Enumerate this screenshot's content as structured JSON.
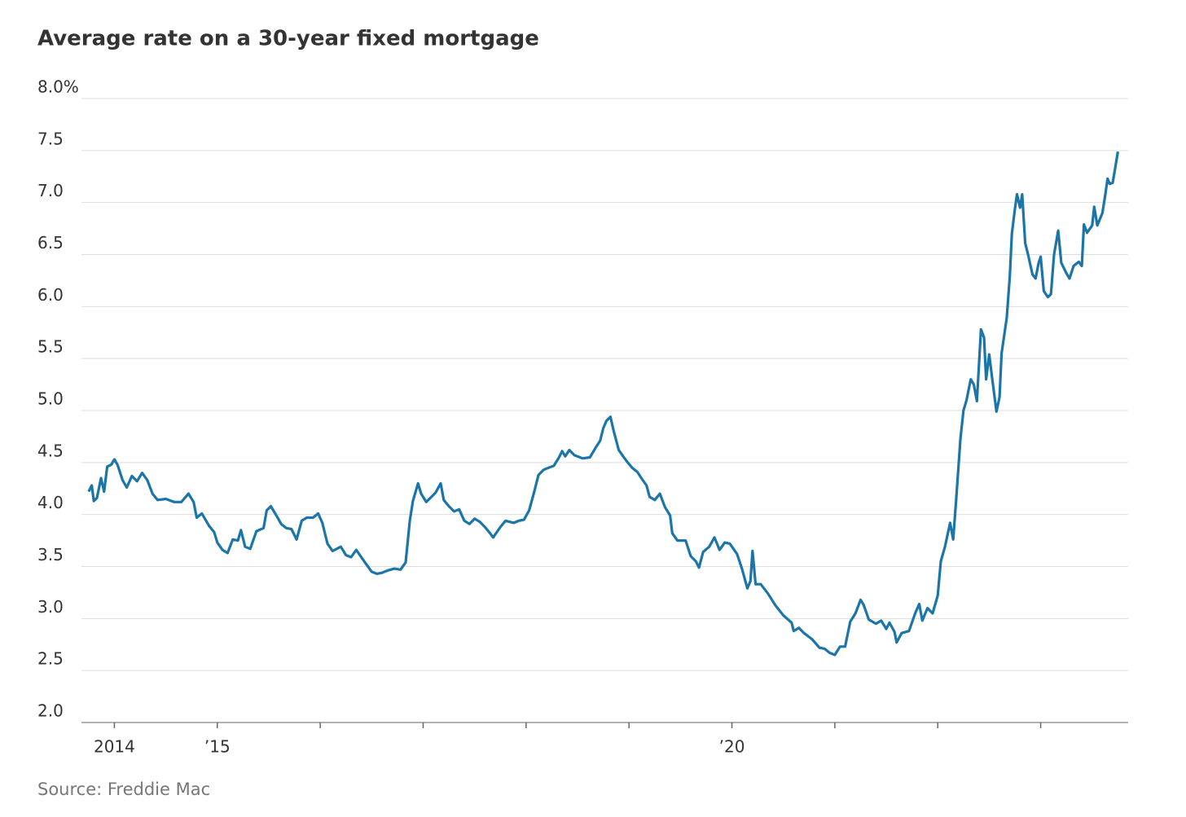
{
  "chart_data": {
    "type": "line",
    "title": "Average rate on a 30-year fixed mortgage",
    "source": "Source: Freddie Mac",
    "xlim": [
      2013.68,
      2023.85
    ],
    "xticks": [
      {
        "value": 2014,
        "label": "2014"
      },
      {
        "value": 2015,
        "label": "’15"
      },
      {
        "value": 2016,
        "label": null
      },
      {
        "value": 2017,
        "label": null
      },
      {
        "value": 2018,
        "label": null
      },
      {
        "value": 2019,
        "label": null
      },
      {
        "value": 2020,
        "label": "’20"
      },
      {
        "value": 2021,
        "label": null
      },
      {
        "value": 2022,
        "label": null
      },
      {
        "value": 2023,
        "label": null
      }
    ],
    "ylim": [
      2,
      8
    ],
    "yticks": [
      {
        "value": 2,
        "label": "2.0"
      },
      2.5,
      {
        "value": 3,
        "label": "3.0"
      },
      3.5,
      {
        "value": 4,
        "label": "4.0"
      },
      4.5,
      {
        "value": 5,
        "label": "5.0"
      },
      5.5,
      {
        "value": 6,
        "label": "6.0"
      },
      6.5,
      {
        "value": 7,
        "label": "7.0"
      },
      7.5,
      {
        "value": 8,
        "label": "8.0%"
      }
    ],
    "grid": true,
    "series": [
      {
        "color": "#1b75a9",
        "x": [
          2013.75,
          2013.78,
          2013.8,
          2013.83,
          2013.87,
          2013.9,
          2013.93,
          2013.97,
          2014.0,
          2014.03,
          2014.08,
          2014.12,
          2014.17,
          2014.22,
          2014.27,
          2014.32,
          2014.37,
          2014.42,
          2014.5,
          2014.58,
          2014.65,
          2014.72,
          2014.77,
          2014.8,
          2014.85,
          2014.92,
          2014.97,
          2015.0,
          2015.05,
          2015.1,
          2015.15,
          2015.2,
          2015.23,
          2015.27,
          2015.32,
          2015.38,
          2015.45,
          2015.48,
          2015.52,
          2015.58,
          2015.62,
          2015.67,
          2015.72,
          2015.77,
          2015.82,
          2015.87,
          2015.93,
          2015.98,
          2016.02,
          2016.07,
          2016.12,
          2016.2,
          2016.25,
          2016.3,
          2016.35,
          2016.42,
          2016.5,
          2016.55,
          2016.6,
          2016.65,
          2016.72,
          2016.78,
          2016.83,
          2016.87,
          2016.9,
          2016.95,
          2016.98,
          2017.03,
          2017.08,
          2017.12,
          2017.17,
          2017.2,
          2017.25,
          2017.3,
          2017.35,
          2017.4,
          2017.45,
          2017.5,
          2017.55,
          2017.6,
          2017.65,
          2017.68,
          2017.75,
          2017.8,
          2017.88,
          2017.93,
          2017.98,
          2018.03,
          2018.08,
          2018.12,
          2018.17,
          2018.22,
          2018.27,
          2018.32,
          2018.35,
          2018.38,
          2018.42,
          2018.47,
          2018.55,
          2018.62,
          2018.68,
          2018.72,
          2018.75,
          2018.78,
          2018.82,
          2018.85,
          2018.9,
          2018.95,
          2018.98,
          2019.03,
          2019.08,
          2019.12,
          2019.17,
          2019.2,
          2019.25,
          2019.3,
          2019.35,
          2019.4,
          2019.42,
          2019.47,
          2019.55,
          2019.6,
          2019.65,
          2019.68,
          2019.72,
          2019.78,
          2019.83,
          2019.88,
          2019.93,
          2019.98,
          2020.05,
          2020.1,
          2020.15,
          2020.18,
          2020.2,
          2020.23,
          2020.28,
          2020.35,
          2020.42,
          2020.5,
          2020.58,
          2020.6,
          2020.65,
          2020.7,
          2020.78,
          2020.85,
          2020.9,
          2020.95,
          2021.0,
          2021.05,
          2021.1,
          2021.15,
          2021.2,
          2021.25,
          2021.28,
          2021.33,
          2021.4,
          2021.45,
          2021.5,
          2021.53,
          2021.58,
          2021.6,
          2021.65,
          2021.72,
          2021.78,
          2021.82,
          2021.85,
          2021.9,
          2021.95,
          2022.0,
          2022.03,
          2022.07,
          2022.12,
          2022.15,
          2022.18,
          2022.22,
          2022.25,
          2022.28,
          2022.32,
          2022.35,
          2022.38,
          2022.42,
          2022.45,
          2022.47,
          2022.5,
          2022.53,
          2022.57,
          2022.6,
          2022.62,
          2022.67,
          2022.7,
          2022.72,
          2022.75,
          2022.77,
          2022.8,
          2022.82,
          2022.85,
          2022.88,
          2022.92,
          2022.95,
          2022.98,
          2023.0,
          2023.03,
          2023.07,
          2023.1,
          2023.13,
          2023.17,
          2023.2,
          2023.25,
          2023.28,
          2023.32,
          2023.37,
          2023.4,
          2023.42,
          2023.45,
          2023.5,
          2023.52,
          2023.55,
          2023.6,
          2023.63,
          2023.65,
          2023.67,
          2023.7,
          2023.72,
          2023.75
        ],
        "values": [
          4.22,
          4.28,
          4.13,
          4.16,
          4.35,
          4.22,
          4.46,
          4.48,
          4.53,
          4.48,
          4.33,
          4.26,
          4.37,
          4.32,
          4.4,
          4.33,
          4.2,
          4.14,
          4.15,
          4.12,
          4.12,
          4.2,
          4.12,
          3.97,
          4.01,
          3.89,
          3.83,
          3.73,
          3.66,
          3.63,
          3.76,
          3.75,
          3.85,
          3.69,
          3.67,
          3.84,
          3.87,
          4.04,
          4.08,
          3.98,
          3.91,
          3.87,
          3.86,
          3.76,
          3.94,
          3.97,
          3.97,
          4.01,
          3.92,
          3.72,
          3.65,
          3.69,
          3.61,
          3.59,
          3.66,
          3.56,
          3.45,
          3.43,
          3.44,
          3.46,
          3.48,
          3.47,
          3.54,
          3.94,
          4.13,
          4.3,
          4.2,
          4.12,
          4.17,
          4.21,
          4.3,
          4.14,
          4.08,
          4.03,
          4.05,
          3.94,
          3.91,
          3.96,
          3.93,
          3.88,
          3.82,
          3.78,
          3.88,
          3.94,
          3.92,
          3.94,
          3.95,
          4.04,
          4.22,
          4.38,
          4.43,
          4.45,
          4.47,
          4.55,
          4.61,
          4.56,
          4.62,
          4.57,
          4.54,
          4.55,
          4.65,
          4.71,
          4.83,
          4.9,
          4.94,
          4.81,
          4.62,
          4.55,
          4.51,
          4.45,
          4.41,
          4.35,
          4.28,
          4.17,
          4.14,
          4.2,
          4.07,
          3.99,
          3.82,
          3.75,
          3.75,
          3.6,
          3.55,
          3.49,
          3.64,
          3.69,
          3.78,
          3.66,
          3.73,
          3.72,
          3.62,
          3.47,
          3.29,
          3.36,
          3.65,
          3.33,
          3.33,
          3.24,
          3.13,
          3.03,
          2.96,
          2.88,
          2.91,
          2.86,
          2.8,
          2.72,
          2.71,
          2.67,
          2.65,
          2.73,
          2.73,
          2.97,
          3.05,
          3.18,
          3.13,
          2.99,
          2.95,
          2.98,
          2.9,
          2.96,
          2.87,
          2.77,
          2.86,
          2.88,
          3.05,
          3.14,
          2.98,
          3.1,
          3.05,
          3.22,
          3.55,
          3.69,
          3.92,
          3.76,
          4.16,
          4.72,
          5.0,
          5.1,
          5.3,
          5.25,
          5.09,
          5.78,
          5.7,
          5.3,
          5.54,
          5.3,
          4.99,
          5.13,
          5.55,
          5.89,
          6.29,
          6.7,
          6.94,
          7.08,
          6.95,
          7.08,
          6.61,
          6.49,
          6.31,
          6.27,
          6.42,
          6.48,
          6.15,
          6.09,
          6.12,
          6.5,
          6.73,
          6.42,
          6.32,
          6.27,
          6.39,
          6.43,
          6.39,
          6.79,
          6.71,
          6.78,
          6.96,
          6.78,
          6.9,
          7.09,
          7.23,
          7.18,
          7.19,
          7.31,
          7.49
        ]
      }
    ]
  }
}
